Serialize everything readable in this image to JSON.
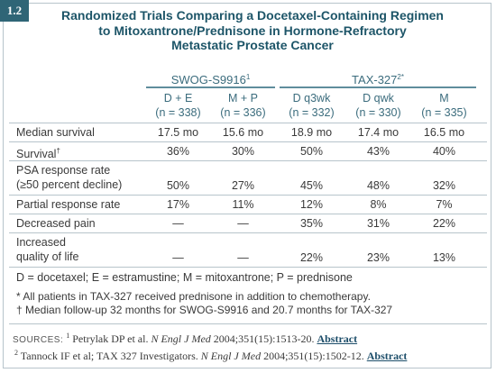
{
  "badge": "1.2",
  "title": [
    "Randomized Trials Comparing a Docetaxel-Containing Regimen",
    "to Mitoxantrone/Prednisone in Hormone-Refractory",
    "Metastatic Prostate Cancer"
  ],
  "table": {
    "groups": [
      {
        "name": "SWOG-S9916",
        "sup": "1",
        "columns": [
          [
            "D + E",
            "(n = 338)"
          ],
          [
            "M + P",
            "(n = 336)"
          ]
        ]
      },
      {
        "name": "TAX-327",
        "sup": "2*",
        "columns": [
          [
            "D q3wk",
            "(n = 332)"
          ],
          [
            "D qwk",
            "(n = 330)"
          ],
          [
            "M",
            "(n = 335)"
          ]
        ]
      }
    ],
    "rows": [
      {
        "label": [
          "Median survival"
        ],
        "cells": [
          "17.5 mo",
          "15.6 mo",
          "18.9 mo",
          "17.4 mo",
          "16.5 mo"
        ]
      },
      {
        "label": [
          "Survival"
        ],
        "sup": "†",
        "cells": [
          "36%",
          "30%",
          "50%",
          "43%",
          "40%"
        ]
      },
      {
        "label": [
          "PSA response rate",
          "(≥50 percent decline)"
        ],
        "cells": [
          "50%",
          "27%",
          "45%",
          "48%",
          "32%"
        ]
      },
      {
        "label": [
          "Partial response rate"
        ],
        "cells": [
          "17%",
          "11%",
          "12%",
          "8%",
          "7%"
        ]
      },
      {
        "label": [
          "Decreased pain"
        ],
        "cells": [
          "—",
          "—",
          "35%",
          "31%",
          "22%"
        ]
      },
      {
        "label": [
          "Increased",
          "quality of life"
        ],
        "cells": [
          "—",
          "—",
          "22%",
          "23%",
          "13%"
        ]
      }
    ]
  },
  "abbreviations": "D = docetaxel; E = estramustine; M = mitoxantrone; P = prednisone",
  "footnotes": [
    "* All patients in TAX-327 received prednisone in addition to chemotherapy.",
    "† Median follow-up 32 months for SWOG-S9916 and 20.7 months for TAX-327"
  ],
  "sources": {
    "label": "SOURCES:",
    "items": [
      {
        "num": "1",
        "authors": "Petrylak DP et al.",
        "journal": "N Engl J Med",
        "citation": "2004;351(15):1513-20.",
        "link": "Abstract"
      },
      {
        "num": "2",
        "authors": "Tannock IF et al; TAX 327 Investigators.",
        "journal": "N Engl J Med",
        "citation": "2004;351(15):1502-12.",
        "link": "Abstract"
      }
    ]
  }
}
